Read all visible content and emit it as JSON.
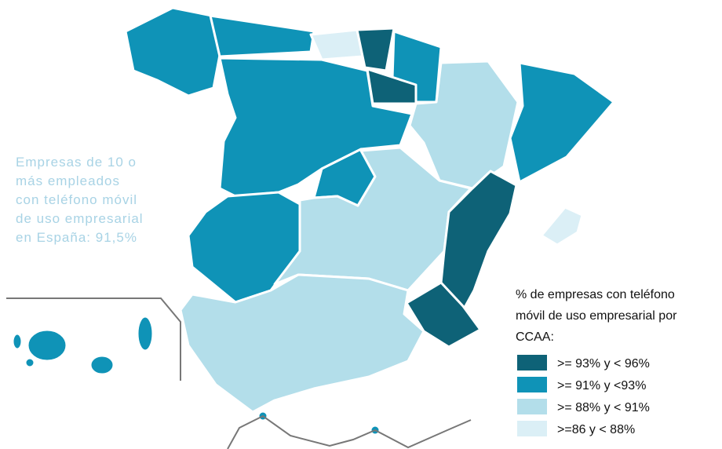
{
  "annotation": {
    "lines": [
      "Empresas de 10 o",
      "más empleados",
      "con teléfono móvil",
      "de uso empresarial",
      "en España: 91,5%"
    ],
    "color": "#a8d3e5"
  },
  "legend": {
    "title_lines": [
      "% de empresas con teléfono",
      "móvil de uso empresarial por",
      "CCAA:"
    ],
    "items": [
      {
        "label": ">= 93% y < 96%",
        "color": "#0e6277"
      },
      {
        "label": ">= 91% y <93%",
        "color": "#0f93b7"
      },
      {
        "label": ">= 88% y < 91%",
        "color": "#b3deea"
      },
      {
        "label": ">=86 y < 88%",
        "color": "#dbeff6"
      }
    ]
  }
}
